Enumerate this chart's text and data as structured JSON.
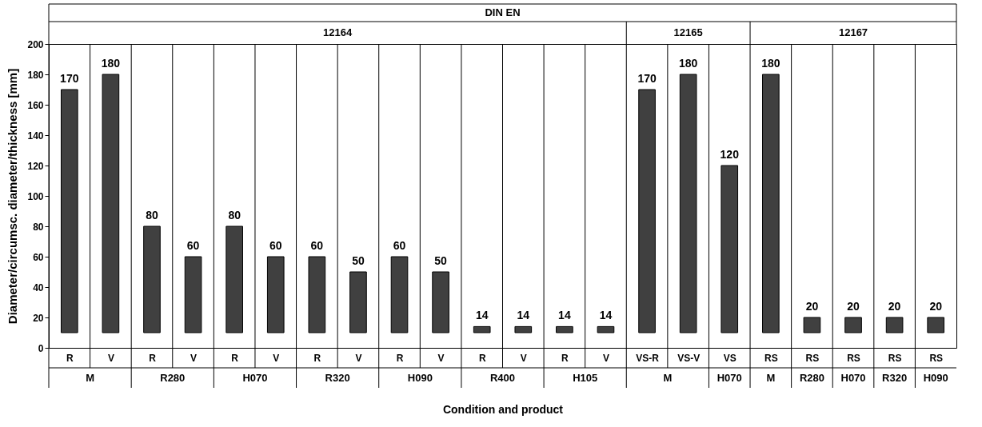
{
  "chart_data": {
    "type": "bar",
    "xlabel": "Condition and product",
    "ylabel": "Diameter/circumsc. diameter/thickness [mm]",
    "categories": [
      "R",
      "V",
      "R",
      "V",
      "R",
      "V",
      "R",
      "V",
      "R",
      "V",
      "R",
      "V",
      "R",
      "V",
      "VS-R",
      "VS-V",
      "VS",
      "RS",
      "RS",
      "RS",
      "RS",
      "RS"
    ],
    "base": [
      10,
      10,
      10,
      10,
      10,
      10,
      10,
      10,
      10,
      10,
      10,
      10,
      10,
      10,
      10,
      10,
      10,
      10,
      10,
      10,
      10,
      10
    ],
    "values": [
      160,
      170,
      70,
      50,
      70,
      50,
      50,
      40,
      50,
      40,
      4,
      4,
      4,
      4,
      160,
      170,
      110,
      170,
      10,
      10,
      10,
      10
    ],
    "value_labels": [
      "170",
      "180",
      "80",
      "60",
      "80",
      "60",
      "60",
      "50",
      "60",
      "50",
      "14",
      "14",
      "14",
      "14",
      "170",
      "180",
      "120",
      "180",
      "20",
      "20",
      "20",
      "20"
    ],
    "color": "#404040",
    "ylim": [
      0,
      200
    ],
    "yticks": [
      0,
      20,
      40,
      60,
      80,
      100,
      120,
      140,
      160,
      180,
      200
    ],
    "annotations": [
      "DIN EN",
      "12164",
      "12165",
      "12167",
      "M",
      "R280",
      "H070",
      "R320",
      "H090",
      "R400",
      "H105",
      "M",
      "H070",
      "M",
      "R280",
      "H070",
      "R320",
      "H090"
    ]
  }
}
